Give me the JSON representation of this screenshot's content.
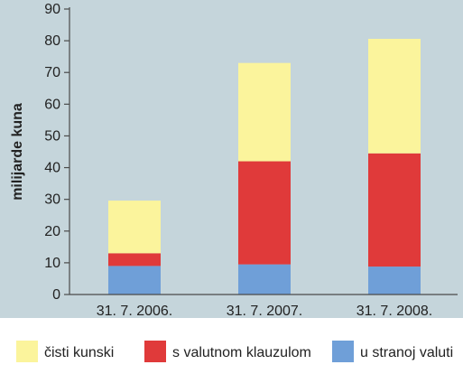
{
  "chart_data": {
    "type": "bar",
    "stacked": true,
    "categories": [
      "31. 7. 2006.",
      "31. 7. 2007.",
      "31. 7. 2008."
    ],
    "series": [
      {
        "name": "u stranoj valuti",
        "color": "#6f9fd8",
        "values": [
          9,
          9.5,
          8.8
        ]
      },
      {
        "name": "s valutnom klauzulom",
        "color": "#e03a3a",
        "values": [
          4,
          32.5,
          35.7
        ]
      },
      {
        "name": "čisti kunski",
        "color": "#fbf49c",
        "values": [
          16.6,
          31,
          36.1
        ]
      }
    ],
    "legend_order": [
      "čisti kunski",
      "s valutnom klauzulom",
      "u stranoj valuti"
    ],
    "ylabel": "milijarde kuna",
    "ylim": [
      0,
      90
    ],
    "yticks": [
      0,
      10,
      20,
      30,
      40,
      50,
      60,
      70,
      80,
      90
    ],
    "grid": false,
    "legend_position": "bottom",
    "colors": {
      "plot_background": "#c5d5db",
      "axis": "#4a4a4a"
    }
  }
}
